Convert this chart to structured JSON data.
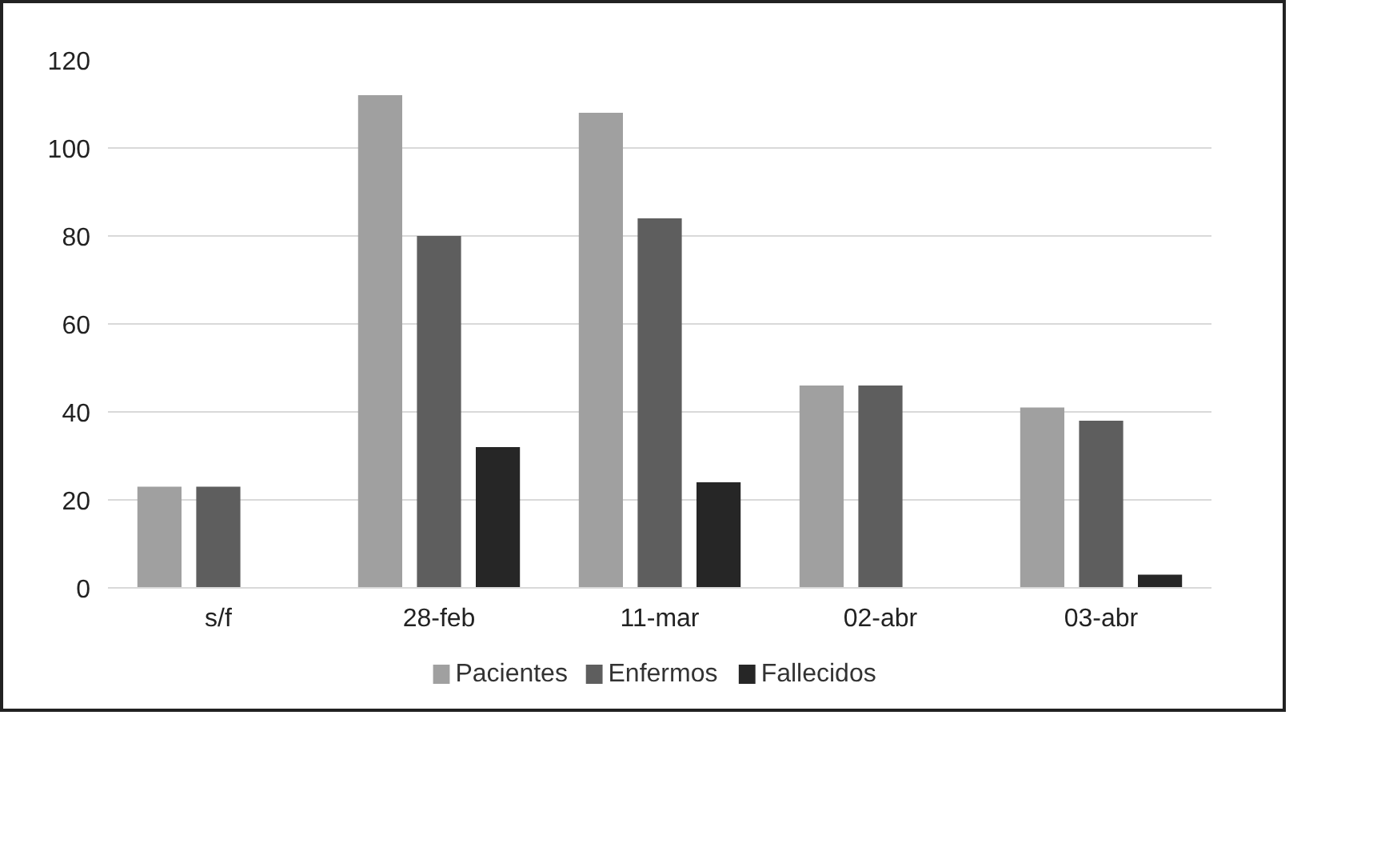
{
  "chart_data": {
    "type": "bar",
    "categories": [
      "s/f",
      "28-feb",
      "11-mar",
      "02-abr",
      "03-abr"
    ],
    "series": [
      {
        "name": "Pacientes",
        "color": "#a0a0a0",
        "values": [
          23,
          112,
          108,
          46,
          41
        ]
      },
      {
        "name": "Enfermos",
        "color": "#5e5e5e",
        "values": [
          23,
          80,
          84,
          46,
          38
        ]
      },
      {
        "name": "Fallecidos",
        "color": "#262626",
        "values": [
          null,
          32,
          24,
          null,
          3
        ]
      }
    ],
    "ylim": [
      0,
      120
    ],
    "yticks": [
      0,
      20,
      40,
      60,
      80,
      100,
      120
    ],
    "grid": "y",
    "legend": "bottom"
  }
}
